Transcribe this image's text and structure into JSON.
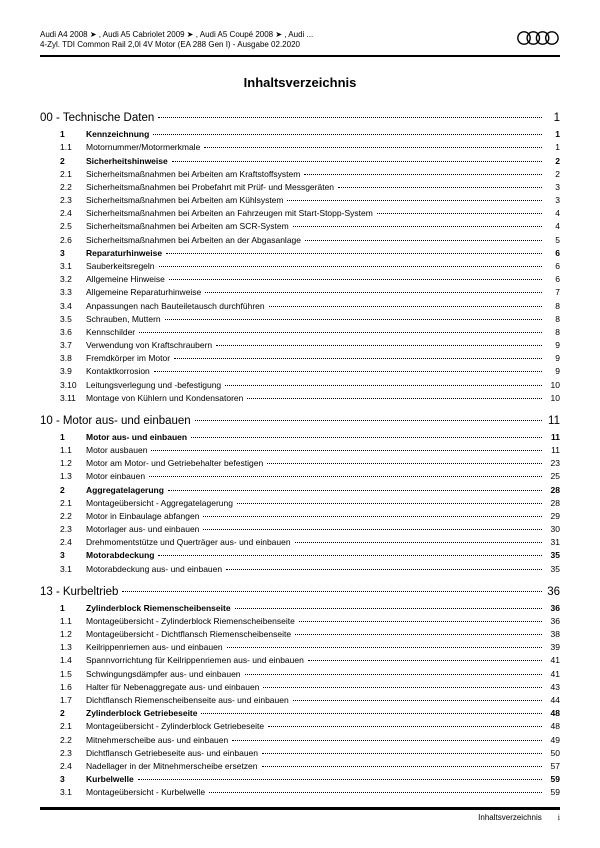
{
  "header": {
    "line1": "Audi A4 2008 ➤ , Audi A5 Cabriolet 2009 ➤ , Audi A5 Coupé 2008 ➤ , Audi ...",
    "line2": "4-Zyl. TDI Common Rail 2,0l 4V Motor (EA 288 Gen I) - Ausgabe 02.2020"
  },
  "title": "Inhaltsverzeichnis",
  "sections": [
    {
      "num": "00 - ",
      "title": "Technische Daten",
      "page": "1",
      "entries": [
        {
          "num": "1",
          "label": "Kennzeichnung",
          "page": "1",
          "bold": true
        },
        {
          "num": "1.1",
          "label": "Motornummer/Motormerkmale",
          "page": "1",
          "bold": false
        },
        {
          "num": "2",
          "label": "Sicherheitshinweise",
          "page": "2",
          "bold": true
        },
        {
          "num": "2.1",
          "label": "Sicherheitsmaßnahmen bei Arbeiten am Kraftstoffsystem",
          "page": "2",
          "bold": false
        },
        {
          "num": "2.2",
          "label": "Sicherheitsmaßnahmen bei Probefahrt mit Prüf- und Messgeräten",
          "page": "3",
          "bold": false
        },
        {
          "num": "2.3",
          "label": "Sicherheitsmaßnahmen bei Arbeiten am Kühlsystem",
          "page": "3",
          "bold": false
        },
        {
          "num": "2.4",
          "label": "Sicherheitsmaßnahmen bei Arbeiten an Fahrzeugen mit Start-Stopp-System",
          "page": "4",
          "bold": false
        },
        {
          "num": "2.5",
          "label": "Sicherheitsmaßnahmen bei Arbeiten am SCR-System",
          "page": "4",
          "bold": false
        },
        {
          "num": "2.6",
          "label": "Sicherheitsmaßnahmen bei Arbeiten an der Abgasanlage",
          "page": "5",
          "bold": false
        },
        {
          "num": "3",
          "label": "Reparaturhinweise",
          "page": "6",
          "bold": true
        },
        {
          "num": "3.1",
          "label": "Sauberkeitsregeln",
          "page": "6",
          "bold": false
        },
        {
          "num": "3.2",
          "label": "Allgemeine Hinweise",
          "page": "6",
          "bold": false
        },
        {
          "num": "3.3",
          "label": "Allgemeine Reparaturhinweise",
          "page": "7",
          "bold": false
        },
        {
          "num": "3.4",
          "label": "Anpassungen nach Bauteiletausch durchführen",
          "page": "8",
          "bold": false
        },
        {
          "num": "3.5",
          "label": "Schrauben, Muttern",
          "page": "8",
          "bold": false
        },
        {
          "num": "3.6",
          "label": "Kennschilder",
          "page": "8",
          "bold": false
        },
        {
          "num": "3.7",
          "label": "Verwendung von Kraftschraubern",
          "page": "9",
          "bold": false
        },
        {
          "num": "3.8",
          "label": "Fremdkörper im Motor",
          "page": "9",
          "bold": false
        },
        {
          "num": "3.9",
          "label": "Kontaktkorrosion",
          "page": "9",
          "bold": false
        },
        {
          "num": "3.10",
          "label": "Leitungsverlegung und -befestigung",
          "page": "10",
          "bold": false
        },
        {
          "num": "3.11",
          "label": "Montage von Kühlern und Kondensatoren",
          "page": "10",
          "bold": false
        }
      ]
    },
    {
      "num": "10 - ",
      "title": "Motor aus- und einbauen",
      "page": "11",
      "entries": [
        {
          "num": "1",
          "label": "Motor aus- und einbauen",
          "page": "11",
          "bold": true
        },
        {
          "num": "1.1",
          "label": "Motor ausbauen",
          "page": "11",
          "bold": false
        },
        {
          "num": "1.2",
          "label": "Motor am Motor- und Getriebehalter befestigen",
          "page": "23",
          "bold": false
        },
        {
          "num": "1.3",
          "label": "Motor einbauen",
          "page": "25",
          "bold": false
        },
        {
          "num": "2",
          "label": "Aggregatelagerung",
          "page": "28",
          "bold": true
        },
        {
          "num": "2.1",
          "label": "Montageübersicht - Aggregatelagerung",
          "page": "28",
          "bold": false
        },
        {
          "num": "2.2",
          "label": "Motor in Einbaulage abfangen",
          "page": "29",
          "bold": false
        },
        {
          "num": "2.3",
          "label": "Motorlager aus- und einbauen",
          "page": "30",
          "bold": false
        },
        {
          "num": "2.4",
          "label": "Drehmomentstütze und Querträger aus- und einbauen",
          "page": "31",
          "bold": false
        },
        {
          "num": "3",
          "label": "Motorabdeckung",
          "page": "35",
          "bold": true
        },
        {
          "num": "3.1",
          "label": "Motorabdeckung aus- und einbauen",
          "page": "35",
          "bold": false
        }
      ]
    },
    {
      "num": "13 - ",
      "title": "Kurbeltrieb",
      "page": "36",
      "entries": [
        {
          "num": "1",
          "label": "Zylinderblock Riemenscheibenseite",
          "page": "36",
          "bold": true
        },
        {
          "num": "1.1",
          "label": "Montageübersicht - Zylinderblock Riemenscheibenseite",
          "page": "36",
          "bold": false
        },
        {
          "num": "1.2",
          "label": "Montageübersicht - Dichtflansch Riemenscheibenseite",
          "page": "38",
          "bold": false
        },
        {
          "num": "1.3",
          "label": "Keilrippenriemen aus- und einbauen",
          "page": "39",
          "bold": false
        },
        {
          "num": "1.4",
          "label": "Spannvorrichtung für Keilrippenriemen aus- und einbauen",
          "page": "41",
          "bold": false
        },
        {
          "num": "1.5",
          "label": "Schwingungsdämpfer aus- und einbauen",
          "page": "41",
          "bold": false
        },
        {
          "num": "1.6",
          "label": "Halter für Nebenaggregate aus- und einbauen",
          "page": "43",
          "bold": false
        },
        {
          "num": "1.7",
          "label": "Dichtflansch Riemenscheibenseite aus- und einbauen",
          "page": "44",
          "bold": false
        },
        {
          "num": "2",
          "label": "Zylinderblock Getriebeseite",
          "page": "48",
          "bold": true
        },
        {
          "num": "2.1",
          "label": "Montageübersicht - Zylinderblock Getriebeseite",
          "page": "48",
          "bold": false
        },
        {
          "num": "2.2",
          "label": "Mitnehmerscheibe aus- und einbauen",
          "page": "49",
          "bold": false
        },
        {
          "num": "2.3",
          "label": "Dichtflansch Getriebeseite aus- und einbauen",
          "page": "50",
          "bold": false
        },
        {
          "num": "2.4",
          "label": "Nadellager in der Mitnehmerscheibe ersetzen",
          "page": "57",
          "bold": false
        },
        {
          "num": "3",
          "label": "Kurbelwelle",
          "page": "59",
          "bold": true
        },
        {
          "num": "3.1",
          "label": "Montageübersicht - Kurbelwelle",
          "page": "59",
          "bold": false
        }
      ]
    }
  ],
  "footer": {
    "label": "Inhaltsverzeichnis",
    "page": "i"
  }
}
